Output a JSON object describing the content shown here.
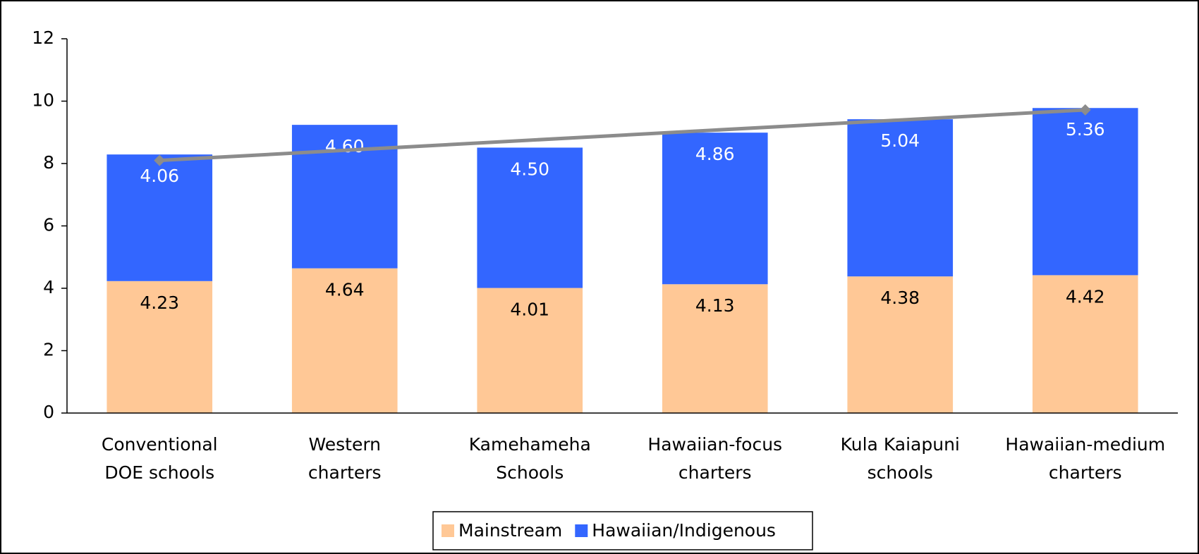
{
  "chart_data": {
    "type": "stacked-bar",
    "categories": [
      [
        "Conventional",
        "DOE schools"
      ],
      [
        "Western",
        "charters"
      ],
      [
        "Kamehameha",
        "Schools"
      ],
      [
        "Hawaiian-focus",
        "charters"
      ],
      [
        "Kula Kaiapuni",
        "schools"
      ],
      [
        "Hawaiian-medium",
        "charters"
      ]
    ],
    "series": [
      {
        "name": "Mainstream",
        "color": "#ffc896",
        "label_color": "#000000",
        "values": [
          4.23,
          4.64,
          4.01,
          4.13,
          4.38,
          4.42
        ],
        "value_labels": [
          "4.23",
          "4.64",
          "4.01",
          "4.13",
          "4.38",
          "4.42"
        ]
      },
      {
        "name": "Hawaiian/Indigenous",
        "color": "#3366ff",
        "label_color": "#ffffff",
        "values": [
          4.06,
          4.6,
          4.5,
          4.86,
          5.04,
          5.36
        ],
        "value_labels": [
          "4.06",
          "4.60",
          "4.50",
          "4.86",
          "5.04",
          "5.36"
        ]
      }
    ],
    "trendline": {
      "color": "#8c8c8c",
      "start": 8.1,
      "end": 9.72
    },
    "ylim": [
      0,
      12
    ],
    "yticks": [
      0,
      2,
      4,
      6,
      8,
      10,
      12
    ],
    "legend": "bottom"
  }
}
